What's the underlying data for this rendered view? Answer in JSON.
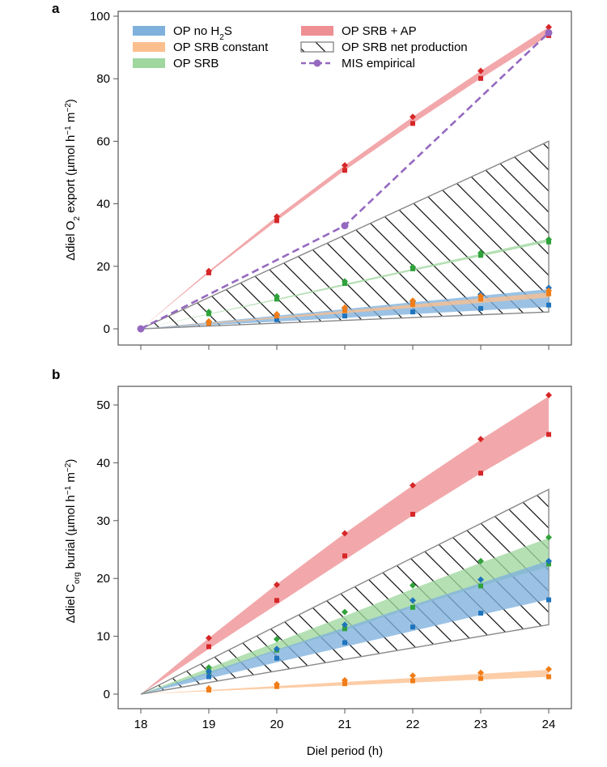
{
  "figure": {
    "panel_labels": [
      "a",
      "b"
    ],
    "xlabel": "Diel period (h)",
    "ylabel_a": {
      "pre": "Δdiel O",
      "sub": "2",
      "post": " export (µmol h",
      "sup1": "−1",
      "mid": " m",
      "sup2": "−2",
      "end": ")"
    },
    "ylabel_b": {
      "pre": "Δdiel C",
      "sub": "org",
      "post": " burial (µmol h",
      "sup1": "−1",
      "mid": " m",
      "sup2": "−2",
      "end": ")"
    }
  },
  "legend": [
    {
      "key": "op_no_h2s",
      "pre": "OP no H",
      "sub": "2",
      "post": "S",
      "color": "#7fb1dc"
    },
    {
      "key": "op_srb_constant",
      "pre": "OP SRB constant",
      "sub": "",
      "post": "",
      "color": "#fbbf8e"
    },
    {
      "key": "op_srb",
      "pre": "OP SRB",
      "sub": "",
      "post": "",
      "color": "#9fd79f"
    },
    {
      "key": "op_srb_ap",
      "pre": "OP SRB + AP",
      "sub": "",
      "post": "",
      "color": "#ee8f93"
    },
    {
      "key": "op_srb_net",
      "pre": "OP SRB net production",
      "sub": "",
      "post": "",
      "color": "#777777"
    },
    {
      "key": "mis",
      "pre": "MIS empirical",
      "sub": "",
      "post": "",
      "color": "#9569bf"
    }
  ],
  "chart_data": [
    {
      "panel": "a",
      "type": "area",
      "x": [
        18,
        19,
        20,
        21,
        22,
        23,
        24
      ],
      "xlim": [
        18,
        24
      ],
      "ylim": [
        0,
        100
      ],
      "yticks": [
        0,
        20,
        40,
        60,
        80,
        100
      ],
      "xticks": [
        18,
        19,
        20,
        21,
        22,
        23,
        24
      ],
      "grid": false,
      "legend_position": "top",
      "series": [
        {
          "name": "OP SRB net production",
          "kind": "hatch",
          "lower": [
            0,
            0.9,
            1.8,
            2.7,
            3.6,
            4.5,
            5.4
          ],
          "upper": [
            0,
            10.0,
            20.0,
            30.0,
            40.0,
            50.0,
            60.0
          ],
          "color": "#777777"
        },
        {
          "name": "OP no H2S",
          "kind": "band",
          "lower": [
            0,
            1.2,
            2.3,
            3.5,
            4.7,
            5.9,
            7.0
          ],
          "upper": [
            0,
            2.1,
            4.2,
            6.3,
            8.5,
            10.6,
            12.7
          ],
          "color": "#7fb1dc",
          "markers_low": [
            null,
            1.6,
            2.9,
            4.1,
            5.4,
            6.5,
            7.6
          ],
          "markers_high": [
            null,
            2.1,
            4.4,
            6.6,
            8.8,
            11.0,
            13.1
          ]
        },
        {
          "name": "OP SRB constant",
          "kind": "band",
          "lower": [
            0,
            1.6,
            3.3,
            5.0,
            6.7,
            8.3,
            10.0
          ],
          "upper": [
            0,
            1.9,
            3.8,
            5.8,
            7.8,
            9.7,
            11.6
          ],
          "color": "#fbbf8e",
          "markers_low": [
            null,
            1.7,
            4.1,
            5.8,
            7.8,
            9.5,
            11.2
          ],
          "markers_high": [
            null,
            2.4,
            4.7,
            6.8,
            9.0,
            10.5,
            12.2
          ]
        },
        {
          "name": "OP SRB",
          "kind": "band",
          "lower": [
            0,
            4.6,
            9.2,
            13.8,
            18.6,
            23.2,
            27.8
          ],
          "upper": [
            0,
            4.8,
            9.6,
            14.4,
            19.2,
            24.0,
            28.8
          ],
          "color": "#9fd79f",
          "markers_low": [
            null,
            4.8,
            9.5,
            14.5,
            19.2,
            23.5,
            27.8
          ],
          "markers_high": [
            null,
            5.4,
            10.4,
            15.2,
            19.8,
            24.3,
            28.6
          ]
        },
        {
          "name": "OP SRB + AP",
          "kind": "band",
          "lower": [
            0,
            17.9,
            34.6,
            50.7,
            65.7,
            80.1,
            93.8
          ],
          "upper": [
            0,
            18.5,
            35.9,
            52.3,
            67.8,
            82.5,
            96.5
          ],
          "color": "#ee8f93",
          "markers_low": [
            null,
            17.9,
            34.6,
            50.7,
            65.7,
            80.1,
            93.8
          ],
          "markers_high": [
            null,
            18.5,
            35.9,
            52.3,
            67.8,
            82.5,
            96.5
          ]
        },
        {
          "name": "MIS empirical",
          "kind": "dashed",
          "x": [
            18,
            21,
            24
          ],
          "y": [
            0,
            33,
            94.7
          ],
          "color": "#9569bf"
        }
      ]
    },
    {
      "panel": "b",
      "type": "area",
      "x": [
        18,
        19,
        20,
        21,
        22,
        23,
        24
      ],
      "xlim": [
        18,
        24
      ],
      "ylim": [
        0,
        54
      ],
      "yticks": [
        0,
        10,
        20,
        30,
        40,
        50
      ],
      "xticks": [
        18,
        19,
        20,
        21,
        22,
        23,
        24
      ],
      "grid": false,
      "legend_position": "none",
      "series": [
        {
          "name": "OP SRB net production",
          "kind": "hatch",
          "lower": [
            0,
            2.0,
            4.0,
            6.0,
            8.0,
            10.0,
            12.0
          ],
          "upper": [
            0,
            5.9,
            11.8,
            17.7,
            23.6,
            29.5,
            35.4
          ],
          "color": "#777777"
        },
        {
          "name": "OP SRB",
          "kind": "band",
          "lower": [
            0,
            3.5,
            7.5,
            11.0,
            15.0,
            18.7,
            22.0
          ],
          "upper": [
            0,
            4.5,
            9.0,
            13.5,
            18.2,
            22.7,
            27.0
          ],
          "color": "#9fd79f",
          "markers_low": [
            null,
            3.9,
            7.6,
            11.3,
            15.0,
            18.7,
            22.5
          ],
          "markers_high": [
            null,
            4.6,
            9.5,
            14.2,
            18.8,
            23.0,
            27.1
          ]
        },
        {
          "name": "OP no H2S",
          "kind": "band",
          "lower": [
            0,
            2.7,
            5.5,
            8.2,
            10.9,
            13.7,
            16.4
          ],
          "upper": [
            0,
            3.8,
            7.7,
            11.5,
            15.4,
            19.2,
            23.1
          ],
          "color": "#7fb1dc",
          "markers_low": [
            null,
            3.0,
            6.2,
            8.9,
            11.6,
            14.0,
            16.3
          ],
          "markers_high": [
            null,
            3.9,
            7.8,
            12.0,
            16.2,
            19.8,
            23.0
          ]
        },
        {
          "name": "OP SRB constant",
          "kind": "band",
          "lower": [
            0,
            0.5,
            1.0,
            1.5,
            2.0,
            2.5,
            3.0
          ],
          "upper": [
            0,
            0.7,
            1.4,
            2.1,
            2.8,
            3.5,
            4.2
          ],
          "color": "#fbbf8e",
          "markers_low": [
            null,
            0.7,
            1.3,
            1.8,
            2.3,
            2.7,
            3.0
          ],
          "markers_high": [
            null,
            1.0,
            1.7,
            2.4,
            3.2,
            3.7,
            4.3
          ]
        },
        {
          "name": "OP SRB + AP",
          "kind": "band",
          "lower": [
            0,
            7.8,
            15.5,
            23.2,
            30.9,
            38.2,
            45.0
          ],
          "upper": [
            0,
            9.7,
            19.0,
            27.8,
            36.1,
            44.0,
            51.5
          ],
          "color": "#ee8f93",
          "markers_low": [
            null,
            8.2,
            16.2,
            23.9,
            31.1,
            38.2,
            44.9
          ],
          "markers_high": [
            null,
            9.7,
            18.9,
            27.8,
            36.1,
            44.1,
            51.7
          ]
        }
      ]
    }
  ],
  "marker_colors": {
    "OP no H2S": "#1f74bd",
    "OP SRB constant": "#f07d18",
    "OP SRB": "#30a23b",
    "OP SRB + AP": "#d62729",
    "MIS empirical": "#9569bf"
  }
}
